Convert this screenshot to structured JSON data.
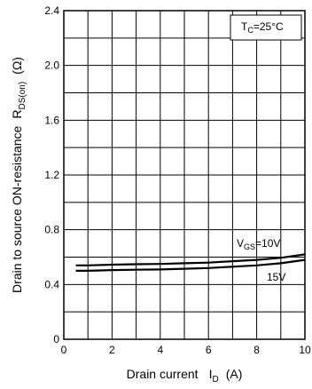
{
  "chart_data": {
    "type": "line",
    "xlabel": {
      "main": "Drain current",
      "symbol": "I",
      "sub": "D",
      "unit": "(A)"
    },
    "ylabel": {
      "main": "Drain to source ON-resistance",
      "symbol": "R",
      "sub": "DS(on)",
      "unit": "(Ω)"
    },
    "xlim": [
      0,
      10
    ],
    "ylim": [
      0,
      2.4
    ],
    "xticks": [
      0,
      2,
      4,
      6,
      8,
      10
    ],
    "yticks": [
      0,
      0.4,
      0.8,
      1.2,
      1.6,
      2.0,
      2.4
    ],
    "xtick_labels": [
      "0",
      "2",
      "4",
      "6",
      "8",
      "10"
    ],
    "ytick_labels": [
      "0",
      "0.4",
      "0.8",
      "1.2",
      "1.6",
      "2.0",
      "2.4"
    ],
    "grid": true,
    "condition_note": {
      "main": "T",
      "sub": "C",
      "rest": "=25°C"
    },
    "series": [
      {
        "name": "10V",
        "label": {
          "main": "V",
          "sub": "GS",
          "rest": "=10V"
        },
        "x": [
          0.5,
          1,
          2,
          3,
          4,
          5,
          6,
          7,
          8,
          9,
          10
        ],
        "y": [
          0.54,
          0.54,
          0.545,
          0.548,
          0.55,
          0.555,
          0.56,
          0.57,
          0.58,
          0.595,
          0.62
        ]
      },
      {
        "name": "15V",
        "label": {
          "main": "15V",
          "sub": "",
          "rest": ""
        },
        "x": [
          0.5,
          1,
          2,
          3,
          4,
          5,
          6,
          7,
          8,
          9,
          10
        ],
        "y": [
          0.5,
          0.5,
          0.505,
          0.508,
          0.51,
          0.515,
          0.52,
          0.53,
          0.54,
          0.555,
          0.58
        ]
      }
    ],
    "colors": {
      "line": "#000000",
      "grid": "#000000",
      "background": "#ffffff"
    }
  }
}
